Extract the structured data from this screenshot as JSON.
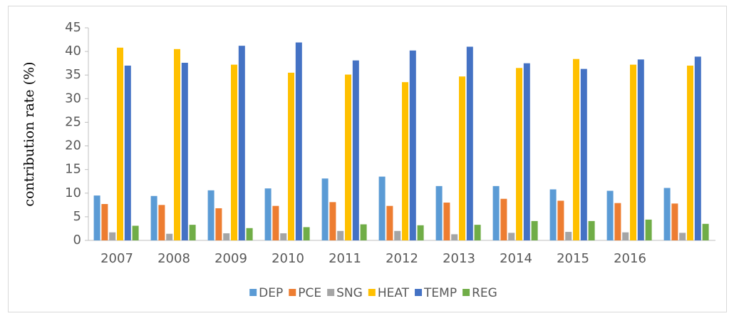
{
  "chart_data": {
    "type": "bar",
    "y_label": "contribution rate (%)",
    "categories": [
      "2007",
      "2008",
      "2009",
      "2010",
      "2011",
      "2012",
      "2013",
      "2014",
      "2015",
      "2016",
      null
    ],
    "series": [
      {
        "name": "DEP",
        "color": "#5b9bd5",
        "values": [
          9.5,
          9.4,
          10.6,
          11.0,
          13.1,
          13.5,
          11.5,
          11.5,
          10.8,
          10.5,
          11.1
        ]
      },
      {
        "name": "PCE",
        "color": "#ed7d31",
        "values": [
          7.7,
          7.5,
          6.8,
          7.3,
          8.1,
          7.3,
          8.0,
          8.8,
          8.4,
          7.9,
          7.8
        ]
      },
      {
        "name": "SNG",
        "color": "#a5a5a5",
        "values": [
          1.7,
          1.4,
          1.5,
          1.5,
          2.0,
          2.0,
          1.3,
          1.6,
          1.8,
          1.7,
          1.6
        ]
      },
      {
        "name": "HEAT",
        "color": "#ffc000",
        "values": [
          40.8,
          40.5,
          37.2,
          35.5,
          35.1,
          33.5,
          34.7,
          36.5,
          38.4,
          37.2,
          37.0
        ]
      },
      {
        "name": "TEMP",
        "color": "#4472c4",
        "values": [
          37.0,
          37.6,
          41.2,
          41.9,
          38.1,
          40.2,
          41.0,
          37.5,
          36.3,
          38.3,
          38.9
        ]
      },
      {
        "name": "REG",
        "color": "#70ad47",
        "values": [
          3.1,
          3.3,
          2.6,
          2.8,
          3.4,
          3.2,
          3.3,
          4.1,
          4.1,
          4.4,
          3.5
        ]
      }
    ],
    "ylim": [
      0,
      45
    ],
    "yticks": [
      0,
      5,
      10,
      15,
      20,
      25,
      30,
      35,
      40,
      45
    ],
    "grid": false,
    "legend": "bottom"
  }
}
